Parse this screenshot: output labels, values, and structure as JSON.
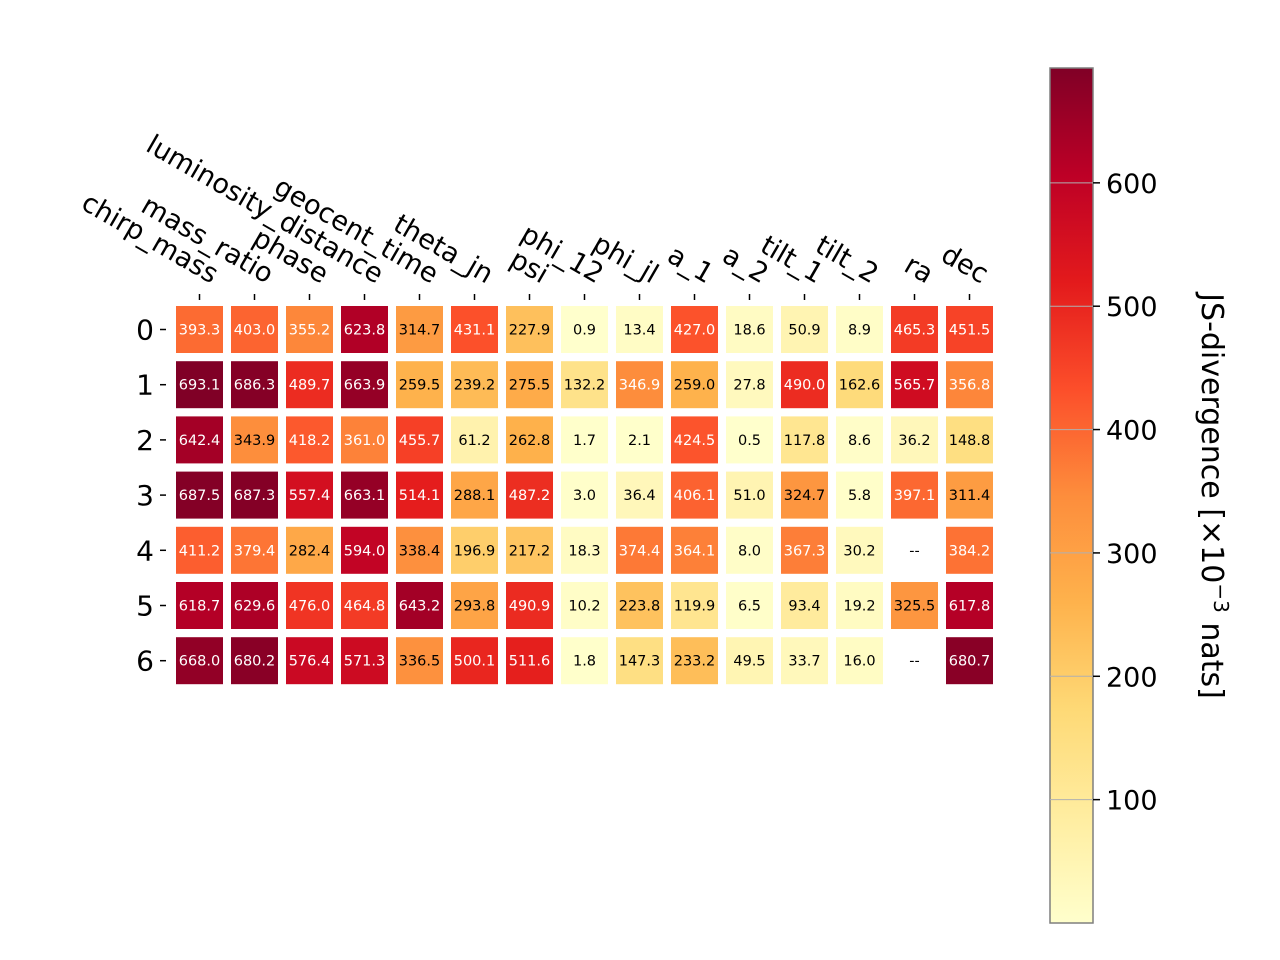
{
  "chart_data": {
    "type": "heatmap",
    "columns": [
      "chirp_mass",
      "mass_ratio",
      "phase",
      "luminosity_distance",
      "geocent_time",
      "theta_jn",
      "psi",
      "phi_12",
      "phi_jl",
      "a_1",
      "a_2",
      "tilt_1",
      "tilt_2",
      "ra",
      "dec"
    ],
    "rows": [
      "0",
      "1",
      "2",
      "3",
      "4",
      "5",
      "6"
    ],
    "values": [
      [
        393.3,
        403.0,
        355.2,
        623.8,
        314.7,
        431.1,
        227.9,
        0.9,
        13.4,
        427.0,
        18.6,
        50.9,
        8.9,
        465.3,
        451.5
      ],
      [
        693.1,
        686.3,
        489.7,
        663.9,
        259.5,
        239.2,
        275.5,
        132.2,
        346.9,
        259.0,
        27.8,
        490.0,
        162.6,
        565.7,
        356.8
      ],
      [
        642.4,
        343.9,
        418.2,
        361.0,
        455.7,
        61.2,
        262.8,
        1.7,
        2.1,
        424.5,
        0.5,
        117.8,
        8.6,
        36.2,
        148.8
      ],
      [
        687.5,
        687.3,
        557.4,
        663.1,
        514.1,
        288.1,
        487.2,
        3.0,
        36.4,
        406.1,
        51.0,
        324.7,
        5.8,
        397.1,
        311.4
      ],
      [
        411.2,
        379.4,
        282.4,
        594.0,
        338.4,
        196.9,
        217.2,
        18.3,
        374.4,
        364.1,
        8.0,
        367.3,
        30.2,
        null,
        384.2
      ],
      [
        618.7,
        629.6,
        476.0,
        464.8,
        643.2,
        293.8,
        490.9,
        10.2,
        223.8,
        119.9,
        6.5,
        93.4,
        19.2,
        325.5,
        617.8
      ],
      [
        668.0,
        680.2,
        576.4,
        571.3,
        336.5,
        500.1,
        511.6,
        1.8,
        147.3,
        233.2,
        49.5,
        33.7,
        16.0,
        null,
        680.7
      ]
    ],
    "cell_labels": [
      [
        "393.3",
        "403.0",
        "355.2",
        "623.8",
        "314.7",
        "431.1",
        "227.9",
        "0.9",
        "13.4",
        "427.0",
        "18.6",
        "50.9",
        "8.9",
        "465.3",
        "451.5"
      ],
      [
        "693.1",
        "686.3",
        "489.7",
        "663.9",
        "259.5",
        "239.2",
        "275.5",
        "132.2",
        "346.9",
        "259.0",
        "27.8",
        "490.0",
        "162.6",
        "565.7",
        "356.8"
      ],
      [
        "642.4",
        "343.9",
        "418.2",
        "361.0",
        "455.7",
        "61.2",
        "262.8",
        "1.7",
        "2.1",
        "424.5",
        "0.5",
        "117.8",
        "8.6",
        "36.2",
        "148.8"
      ],
      [
        "687.5",
        "687.3",
        "557.4",
        "663.1",
        "514.1",
        "288.1",
        "487.2",
        "3.0",
        "36.4",
        "406.1",
        "51.0",
        "324.7",
        "5.8",
        "397.1",
        "311.4"
      ],
      [
        "411.2",
        "379.4",
        "282.4",
        "594.0",
        "338.4",
        "196.9",
        "217.2",
        "18.3",
        "374.4",
        "364.1",
        "8.0",
        "367.3",
        "30.2",
        "--",
        "384.2"
      ],
      [
        "618.7",
        "629.6",
        "476.0",
        "464.8",
        "643.2",
        "293.8",
        "490.9",
        "10.2",
        "223.8",
        "119.9",
        "6.5",
        "93.4",
        "19.2",
        "325.5",
        "617.8"
      ],
      [
        "668.0",
        "680.2",
        "576.4",
        "571.3",
        "336.5",
        "500.1",
        "511.6",
        "1.8",
        "147.3",
        "233.2",
        "49.5",
        "33.7",
        "16.0",
        "--",
        "680.7"
      ]
    ],
    "colormap": "YlOrRd",
    "colormap_stops": [
      "#ffffcc",
      "#ffeda0",
      "#fed976",
      "#feb24c",
      "#fd8d3c",
      "#fc4e2a",
      "#e31a1c",
      "#bd0026",
      "#800026"
    ],
    "color_range": [
      0,
      693.1
    ],
    "colorbar": {
      "label_main": "JS-divergence [×10",
      "label_exp": "−3",
      "label_tail": " nats]",
      "ticks": [
        100,
        200,
        300,
        400,
        500,
        600
      ],
      "tick_labels": [
        "100",
        "200",
        "300",
        "400",
        "500",
        "600"
      ],
      "placement": "right"
    },
    "x_tick_labels_position": "top",
    "grid": false
  }
}
